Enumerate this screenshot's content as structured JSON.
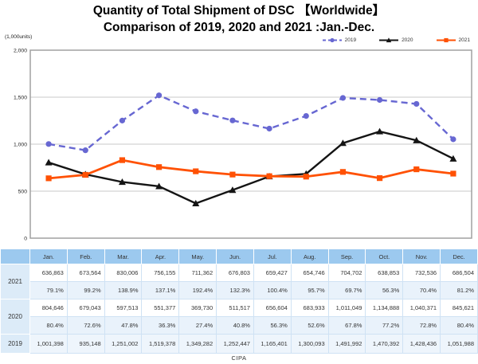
{
  "title": {
    "line1": "Quantity of Total Shipment of DSC 【Worldwide】",
    "line2": "Comparison of 2019, 2020 and 2021 :Jan.-Dec."
  },
  "footer": "CIPA",
  "chart_data": {
    "type": "line",
    "unit_label": "(1,000units)",
    "categories": [
      "Jan.",
      "Feb.",
      "Mar.",
      "Apr.",
      "May.",
      "Jun.",
      "Jul.",
      "Aug.",
      "Sep.",
      "Oct.",
      "Nov.",
      "Dec."
    ],
    "ylabel": "(1,000units)",
    "xlabel": "",
    "ylim": [
      0,
      2000
    ],
    "y_ticks": [
      2000,
      1500,
      1000,
      500,
      0
    ],
    "y_tick_labels": [
      "2,000",
      "1,500",
      "1,000",
      "500",
      "0"
    ],
    "grid": true,
    "legend_position": "top-right",
    "series": [
      {
        "name": "2019",
        "color": "#6767d2",
        "line_style": "dashed",
        "marker": "circle",
        "values": [
          1001398,
          935148,
          1251002,
          1519378,
          1349282,
          1252447,
          1165401,
          1300093,
          1491992,
          1470392,
          1428436,
          1051988
        ]
      },
      {
        "name": "2020",
        "color": "#141414",
        "line_style": "solid",
        "marker": "triangle",
        "values": [
          804646,
          679043,
          597513,
          551377,
          369730,
          511517,
          656604,
          683933,
          1011049,
          1134888,
          1040371,
          845621
        ]
      },
      {
        "name": "2021",
        "color": "#ff5104",
        "line_style": "solid",
        "marker": "square",
        "values": [
          636863,
          673564,
          830006,
          756155,
          711362,
          676803,
          659427,
          654746,
          704702,
          638853,
          732536,
          686504
        ]
      }
    ]
  },
  "table": {
    "months": [
      "Jan.",
      "Feb.",
      "Mar.",
      "Apr.",
      "May.",
      "Jun.",
      "Jul.",
      "Aug.",
      "Sep.",
      "Oct.",
      "Nov.",
      "Dec."
    ],
    "rows": [
      {
        "year": "2021",
        "values": [
          "636,863",
          "673,564",
          "830,006",
          "756,155",
          "711,362",
          "676,803",
          "659,427",
          "654,746",
          "704,702",
          "638,853",
          "732,536",
          "686,504"
        ],
        "percents": [
          "79.1%",
          "99.2%",
          "138.9%",
          "137.1%",
          "192.4%",
          "132.3%",
          "100.4%",
          "95.7%",
          "69.7%",
          "56.3%",
          "70.4%",
          "81.2%"
        ]
      },
      {
        "year": "2020",
        "values": [
          "804,646",
          "679,043",
          "597,513",
          "551,377",
          "369,730",
          "511,517",
          "656,604",
          "683,933",
          "1,011,049",
          "1,134,888",
          "1,040,371",
          "845,621"
        ],
        "percents": [
          "80.4%",
          "72.6%",
          "47.8%",
          "36.3%",
          "27.4%",
          "40.8%",
          "56.3%",
          "52.6%",
          "67.8%",
          "77.2%",
          "72.8%",
          "80.4%"
        ]
      },
      {
        "year": "2019",
        "values": [
          "1,001,398",
          "935,148",
          "1,251,002",
          "1,519,378",
          "1,349,282",
          "1,252,447",
          "1,165,401",
          "1,300,093",
          "1,491,992",
          "1,470,392",
          "1,428,436",
          "1,051,988"
        ]
      }
    ]
  },
  "colors": {
    "header_bg": "#9cc9ef",
    "year_cell_bg": "#dcebf8",
    "pct_row_bg": "#e9f2fb",
    "grid_line": "#c8c8c8",
    "frame": "#a0a0a0"
  }
}
